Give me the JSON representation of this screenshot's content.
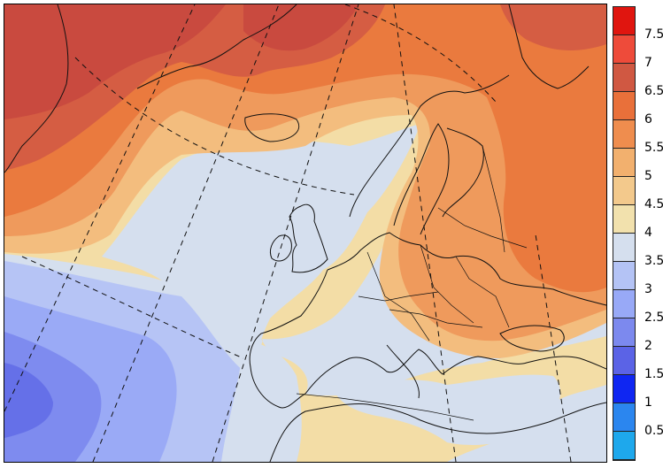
{
  "legend": {
    "labels": [
      "7.5",
      "7",
      "6.5",
      "6",
      "5.5",
      "5",
      "4.5",
      "4",
      "3.5",
      "3",
      "2.5",
      "2",
      "1.5",
      "1",
      "0.5"
    ],
    "colors": [
      "#e0150f",
      "#ee4b3a",
      "#d05842",
      "#e9703a",
      "#ef8d4e",
      "#f2b06e",
      "#f3c98c",
      "#f2e1ad",
      "#d5dfee",
      "#b4c3f5",
      "#98a9f7",
      "#7c89ee",
      "#5b63e6",
      "#0f26f2",
      "#2b86ef",
      "#1ea8ec"
    ]
  },
  "map": {
    "colors": {
      "deep_red": "#c94a3f",
      "red": "#d55d43",
      "orange": "#ea7a3e",
      "light_orange": "#ef9a5c",
      "tan": "#f3bd7e",
      "cream": "#f3dda6",
      "pale_blue": "#d5dfee",
      "blue1": "#b6c4f5",
      "blue2": "#9aaaf6",
      "blue3": "#7e8bef",
      "blue4": "#6570e8"
    }
  }
}
